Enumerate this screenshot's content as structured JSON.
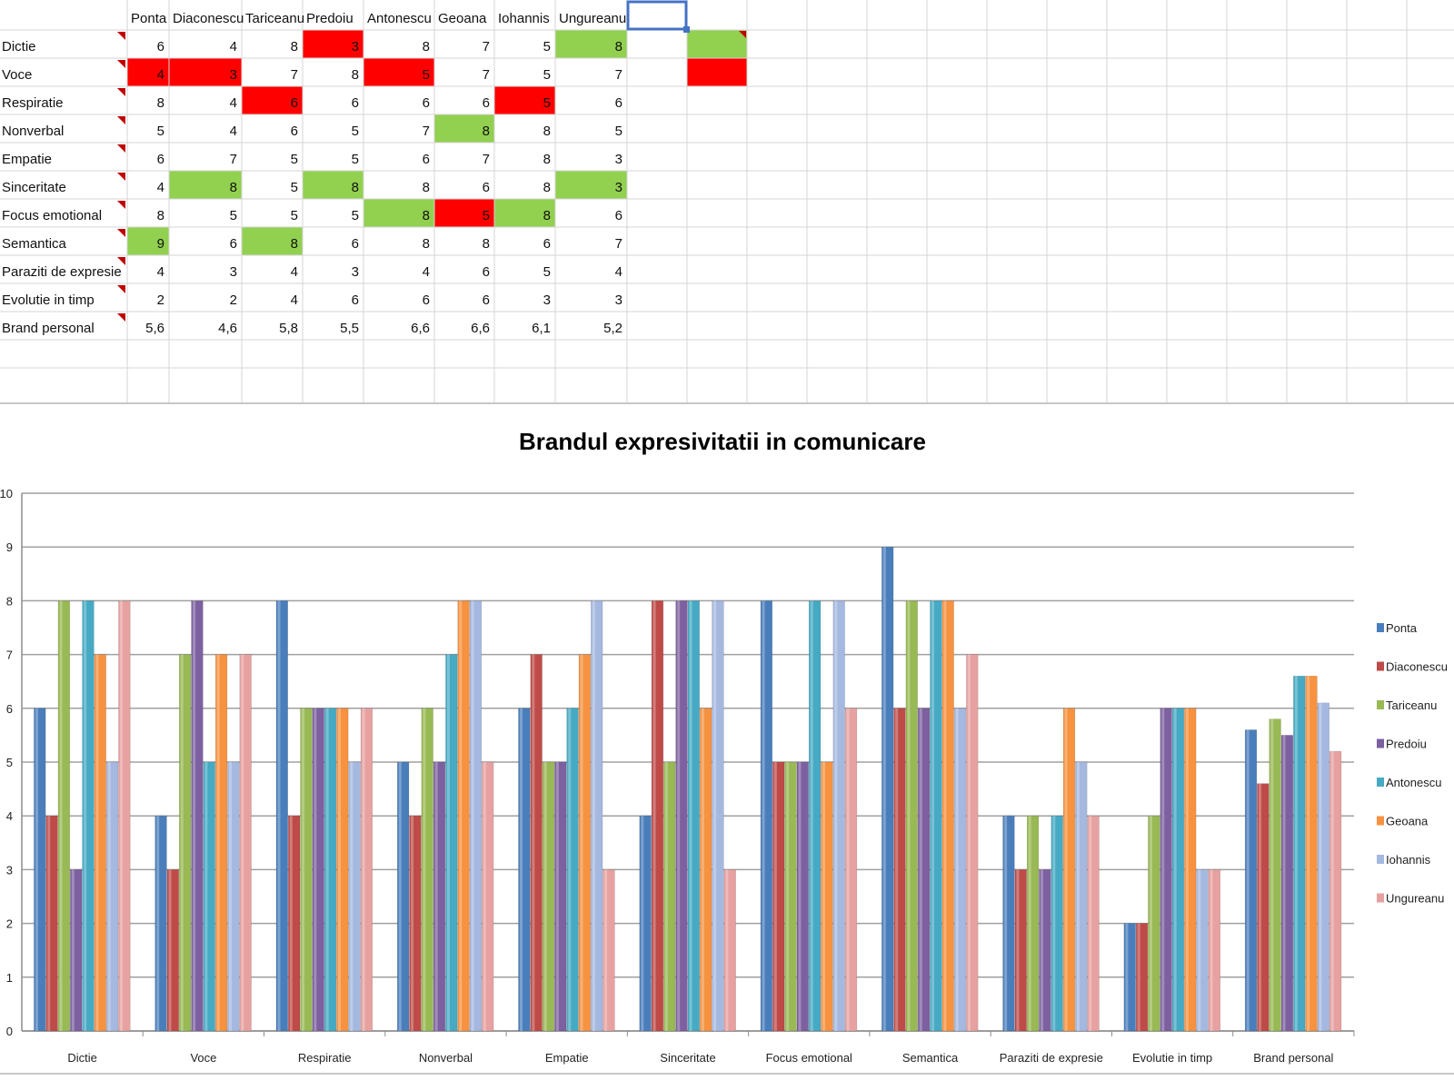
{
  "spreadsheet": {
    "columns": [
      "Ponta",
      "Diaconescu",
      "Tariceanu",
      "Predoiu",
      "Antonescu",
      "Geoana",
      "Iohannis",
      "Ungureanu"
    ],
    "rows": [
      {
        "label": "Dictie",
        "values": [
          "6",
          "4",
          "8",
          "3",
          "8",
          "7",
          "5",
          "8"
        ]
      },
      {
        "label": "Voce",
        "values": [
          "4",
          "3",
          "7",
          "8",
          "5",
          "7",
          "5",
          "7"
        ]
      },
      {
        "label": "Respiratie",
        "values": [
          "8",
          "4",
          "6",
          "6",
          "6",
          "6",
          "5",
          "6"
        ]
      },
      {
        "label": "Nonverbal",
        "values": [
          "5",
          "4",
          "6",
          "5",
          "7",
          "8",
          "8",
          "5"
        ]
      },
      {
        "label": "Empatie",
        "values": [
          "6",
          "7",
          "5",
          "5",
          "6",
          "7",
          "8",
          "3"
        ]
      },
      {
        "label": "Sinceritate",
        "values": [
          "4",
          "8",
          "5",
          "8",
          "8",
          "6",
          "8",
          "3"
        ]
      },
      {
        "label": "Focus emotional",
        "values": [
          "8",
          "5",
          "5",
          "5",
          "8",
          "5",
          "8",
          "6"
        ]
      },
      {
        "label": "Semantica",
        "values": [
          "9",
          "6",
          "8",
          "6",
          "8",
          "8",
          "6",
          "7"
        ]
      },
      {
        "label": "Paraziti de expresie",
        "values": [
          "4",
          "3",
          "4",
          "3",
          "4",
          "6",
          "5",
          "4"
        ]
      },
      {
        "label": "Evolutie in timp",
        "values": [
          "2",
          "2",
          "4",
          "6",
          "6",
          "6",
          "3",
          "3"
        ]
      },
      {
        "label": "Brand personal",
        "values": [
          "5,6",
          "4,6",
          "5,8",
          "5,5",
          "6,6",
          "6,6",
          "6,1",
          "5,2"
        ]
      }
    ],
    "highlights": [
      {
        "row": 0,
        "col": 3,
        "color": "red"
      },
      {
        "row": 0,
        "col": 7,
        "color": "green"
      },
      {
        "row": 1,
        "col": 0,
        "color": "red"
      },
      {
        "row": 1,
        "col": 1,
        "color": "red"
      },
      {
        "row": 1,
        "col": 4,
        "color": "red"
      },
      {
        "row": 2,
        "col": 2,
        "color": "red"
      },
      {
        "row": 2,
        "col": 6,
        "color": "red"
      },
      {
        "row": 3,
        "col": 5,
        "color": "green"
      },
      {
        "row": 5,
        "col": 1,
        "color": "green"
      },
      {
        "row": 5,
        "col": 3,
        "color": "green"
      },
      {
        "row": 5,
        "col": 7,
        "color": "green"
      },
      {
        "row": 6,
        "col": 4,
        "color": "green"
      },
      {
        "row": 6,
        "col": 5,
        "color": "red"
      },
      {
        "row": 6,
        "col": 6,
        "color": "green"
      },
      {
        "row": 7,
        "col": 0,
        "color": "green"
      },
      {
        "row": 7,
        "col": 2,
        "color": "green"
      }
    ],
    "legend_swatches": [
      "green",
      "red"
    ],
    "colors": {
      "red": "#ff0000",
      "green": "#92d050",
      "grid": "#d4d4d4",
      "comment_marker": "#c00000",
      "selection": "#4472c4"
    }
  },
  "chart_data": {
    "type": "bar",
    "title": "Brandul expresivitatii in comunicare",
    "categories": [
      "Dictie",
      "Voce",
      "Respiratie",
      "Nonverbal",
      "Empatie",
      "Sinceritate",
      "Focus emotional",
      "Semantica",
      "Paraziti de expresie",
      "Evolutie in timp",
      "Brand personal"
    ],
    "series": [
      {
        "name": "Ponta",
        "color": "#4a7ebb",
        "values": [
          6,
          4,
          8,
          5,
          6,
          4,
          8,
          9,
          4,
          2,
          5.6
        ]
      },
      {
        "name": "Diaconescu",
        "color": "#be4b48",
        "values": [
          4,
          3,
          4,
          4,
          7,
          8,
          5,
          6,
          3,
          2,
          4.6
        ]
      },
      {
        "name": "Tariceanu",
        "color": "#98b954",
        "values": [
          8,
          7,
          6,
          6,
          5,
          5,
          5,
          8,
          4,
          4,
          5.8
        ]
      },
      {
        "name": "Predoiu",
        "color": "#7d60a0",
        "values": [
          3,
          8,
          6,
          5,
          5,
          8,
          5,
          6,
          3,
          6,
          5.5
        ]
      },
      {
        "name": "Antonescu",
        "color": "#46aac4",
        "values": [
          8,
          5,
          6,
          7,
          6,
          8,
          8,
          8,
          4,
          6,
          6.6
        ]
      },
      {
        "name": "Geoana",
        "color": "#f69240",
        "values": [
          7,
          7,
          6,
          8,
          7,
          6,
          5,
          8,
          6,
          6,
          6.6
        ]
      },
      {
        "name": "Iohannis",
        "color": "#a5b8e0",
        "values": [
          5,
          5,
          5,
          8,
          8,
          8,
          8,
          6,
          5,
          3,
          6.1
        ]
      },
      {
        "name": "Ungureanu",
        "color": "#e6a1a0",
        "values": [
          8,
          7,
          6,
          5,
          3,
          3,
          6,
          7,
          4,
          3,
          5.2
        ]
      }
    ],
    "ylim": [
      0,
      10
    ],
    "yticks": [
      "0",
      "1",
      "2",
      "3",
      "4",
      "5",
      "6",
      "7",
      "8",
      "9",
      "10"
    ],
    "grid": true,
    "legend_position": "right",
    "xlabel": "",
    "ylabel": ""
  }
}
